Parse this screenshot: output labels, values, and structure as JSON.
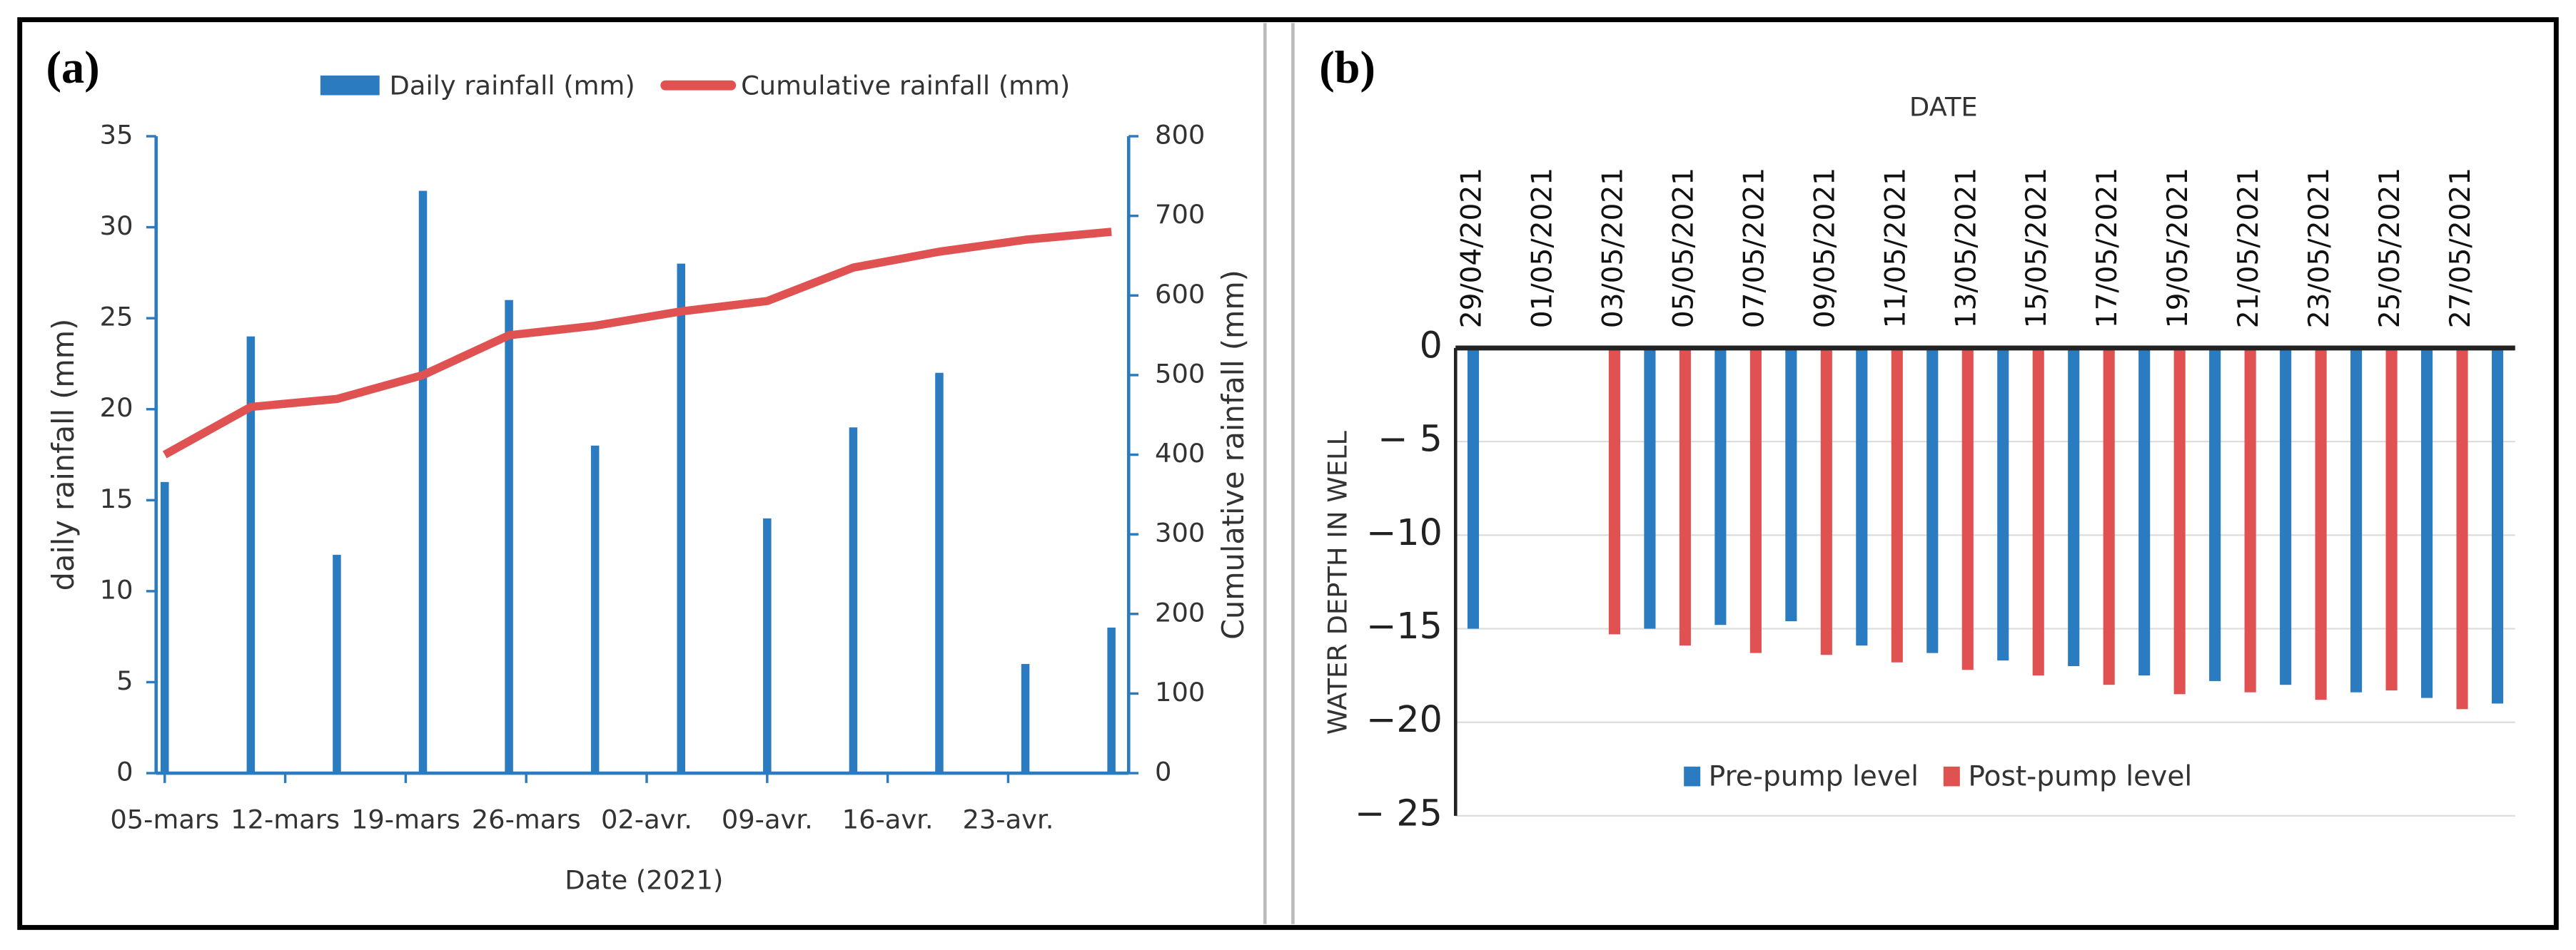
{
  "chart_data": [
    {
      "type": "combo",
      "panel_label": "(a)",
      "xlabel": "Date (2021)",
      "ylabel": "daily rainfall (mm)",
      "y2label": "Cumulative rainfall (mm)",
      "x": [
        0,
        5,
        10,
        15,
        20,
        25,
        30,
        35,
        40,
        45,
        50,
        55
      ],
      "xlim": [
        -0.5,
        56
      ],
      "xticks": [
        {
          "value": 0,
          "label": "05-mars"
        },
        {
          "value": 7,
          "label": "12-mars"
        },
        {
          "value": 14,
          "label": "19-mars"
        },
        {
          "value": 21,
          "label": "26-mars"
        },
        {
          "value": 28,
          "label": "02-avr."
        },
        {
          "value": 35,
          "label": "09-avr."
        },
        {
          "value": 42,
          "label": "16-avr."
        },
        {
          "value": 49,
          "label": "23-avr."
        }
      ],
      "ylim": [
        0,
        35
      ],
      "yticks": [
        0,
        5,
        10,
        15,
        20,
        25,
        30,
        35
      ],
      "y2lim": [
        0,
        800
      ],
      "y2ticks": [
        0,
        100,
        200,
        300,
        400,
        500,
        600,
        700,
        800
      ],
      "series": [
        {
          "name": "Daily rainfall (mm)",
          "type": "bar",
          "color": "#2a7bc0",
          "values": [
            16,
            24,
            12,
            32,
            26,
            18,
            28,
            14,
            19,
            22,
            6,
            8
          ]
        },
        {
          "name": "Cumulative rainfall (mm)",
          "type": "line",
          "axis": "y2",
          "color": "#e05252",
          "values": [
            400,
            460,
            470,
            500,
            550,
            562,
            580,
            593,
            635,
            655,
            670,
            680
          ]
        }
      ]
    },
    {
      "type": "bar",
      "panel_label": "(b)",
      "xlabel": "DATE",
      "ylabel": "WATER DEPTH IN WELL",
      "categories": [
        "29/04/2021",
        null,
        "01/05/2021",
        null,
        "03/05/2021",
        null,
        "05/05/2021",
        null,
        "07/05/2021",
        null,
        "09/05/2021",
        null,
        "11/05/2021",
        null,
        "13/05/2021",
        null,
        "15/05/2021",
        null,
        "17/05/2021",
        null,
        "19/05/2021",
        null,
        "21/05/2021",
        null,
        "23/05/2021",
        null,
        "25/05/2021",
        null,
        "27/05/2021",
        null
      ],
      "ylim": [
        -25,
        0
      ],
      "yticks": [
        0,
        {
          "value": -5,
          "label": "− 5"
        },
        {
          "value": -10,
          "label": "−10"
        },
        {
          "value": -15,
          "label": "−15"
        },
        {
          "value": -20,
          "label": "−20"
        },
        {
          "value": -25,
          "label": "− 25"
        }
      ],
      "grid": true,
      "series": [
        {
          "name": "Pre-pump level",
          "color": "#2a7bc0",
          "values": [
            -15,
            null,
            null,
            null,
            null,
            -15,
            null,
            -14.8,
            null,
            -14.6,
            null,
            -15.9,
            null,
            -16.3,
            null,
            -16.7,
            null,
            -17,
            null,
            -17.5,
            null,
            -17.8,
            null,
            -18,
            null,
            -18.4,
            null,
            -18.7,
            null,
            -19
          ]
        },
        {
          "name": "Post-pump level",
          "color": "#e05252",
          "values": [
            null,
            null,
            null,
            null,
            -15.3,
            null,
            -15.9,
            null,
            -16.3,
            null,
            -16.4,
            null,
            -16.8,
            null,
            -17.2,
            null,
            -17.5,
            null,
            -18,
            null,
            -18.5,
            null,
            -18.4,
            null,
            -18.8,
            null,
            -18.3,
            null,
            -19.3,
            null
          ]
        }
      ]
    }
  ]
}
